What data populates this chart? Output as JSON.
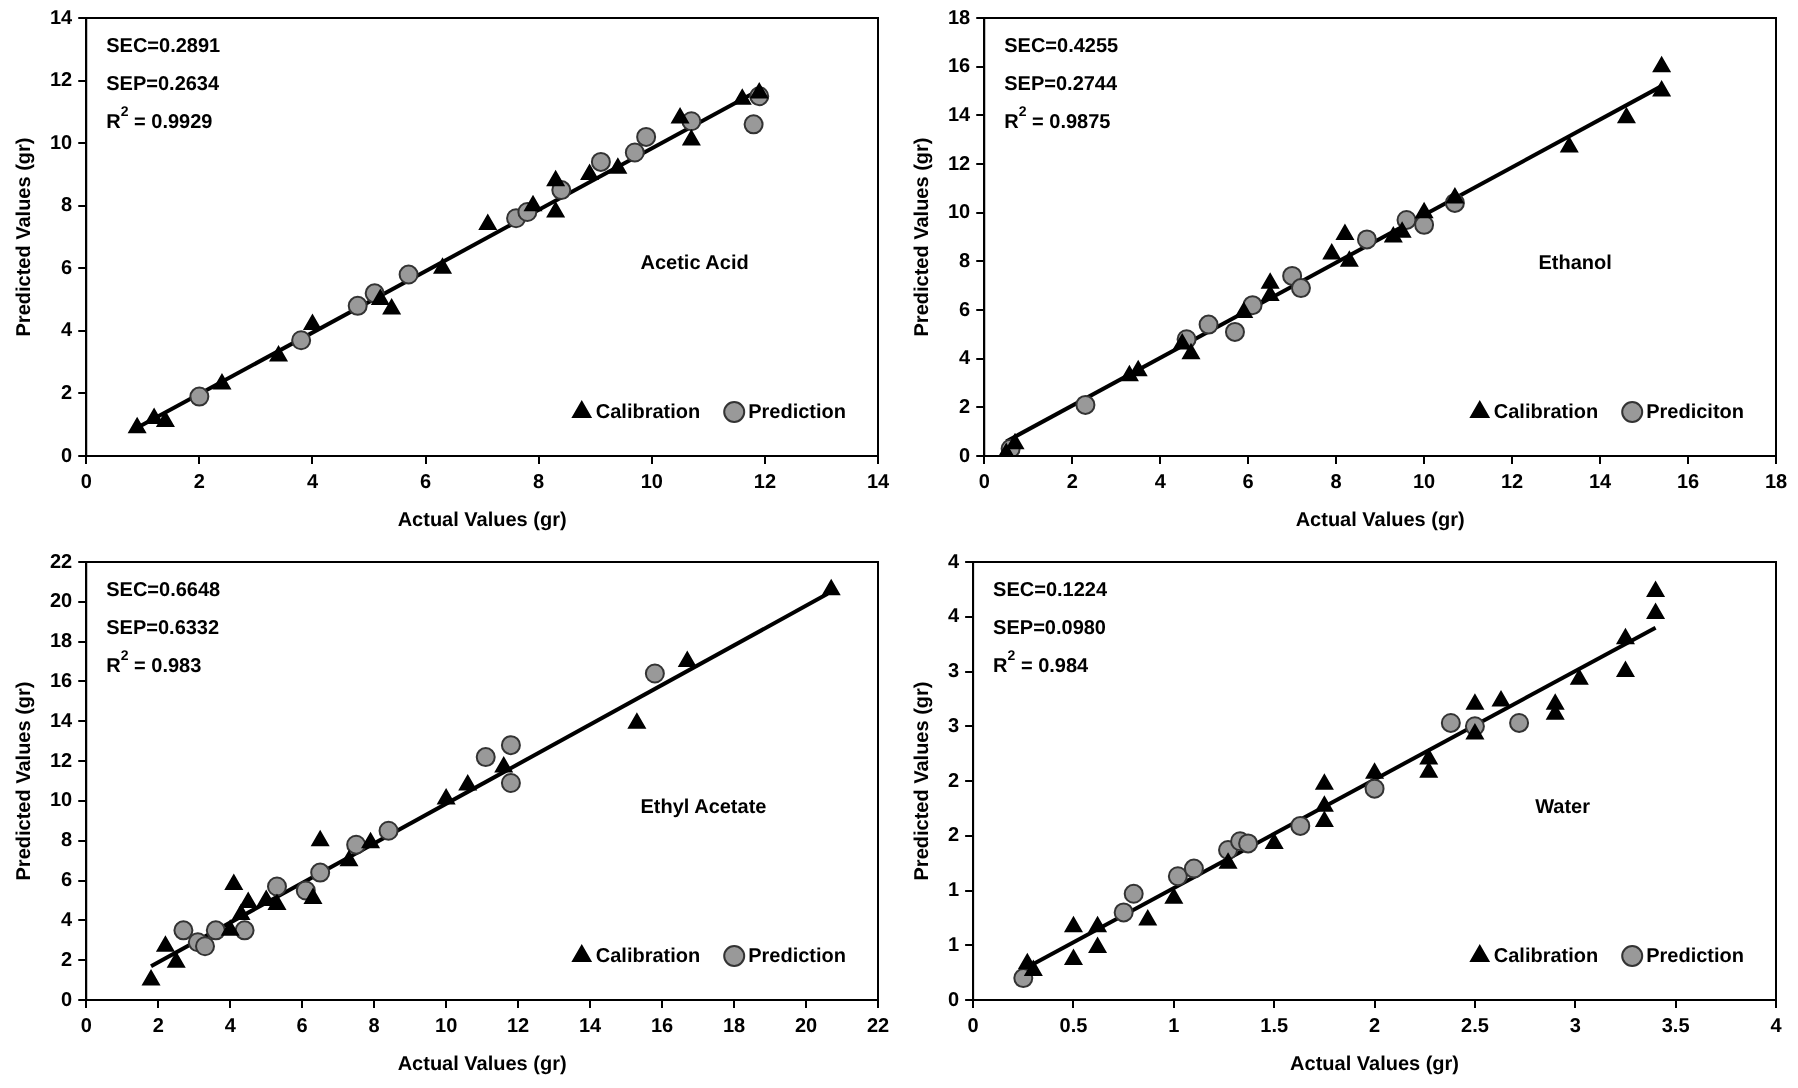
{
  "chart_data": [
    {
      "type": "scatter",
      "xlabel": "Actual Values (gr)",
      "ylabel": "Predicted Values (gr)",
      "xlim": [
        0,
        14
      ],
      "xticks": [
        0,
        2,
        4,
        6,
        8,
        10,
        12,
        14
      ],
      "ylim": [
        0,
        14
      ],
      "yticks": [
        0,
        2,
        4,
        6,
        8,
        10,
        12,
        14
      ],
      "grid": false,
      "legend": "bottom right",
      "annotations": [
        "SEC=0.2891",
        "SEP=0.2634",
        "R$^{2}$ = 0.9929",
        "Acetic Acid"
      ],
      "series": [
        {
          "name": "Calibration",
          "type": "scatter",
          "marker": "triangle",
          "color": "#000000",
          "x": [
            0.9,
            1.2,
            1.4,
            2.4,
            3.4,
            4.0,
            5.2,
            5.4,
            6.3,
            7.1,
            7.9,
            8.3,
            8.3,
            8.9,
            9.4,
            10.5,
            10.7,
            11.6,
            11.9
          ],
          "values": [
            0.9,
            1.2,
            1.1,
            2.3,
            3.2,
            4.2,
            5.0,
            4.7,
            6.0,
            7.4,
            8.0,
            8.8,
            7.8,
            9.0,
            9.2,
            10.8,
            10.1,
            11.4,
            11.6
          ]
        },
        {
          "name": "Prediction",
          "type": "scatter",
          "marker": "circle",
          "color": "#999999",
          "x": [
            2.0,
            3.8,
            4.8,
            5.1,
            5.7,
            7.6,
            7.8,
            8.4,
            9.1,
            9.7,
            9.9,
            10.7,
            11.8,
            11.9
          ],
          "values": [
            1.9,
            3.7,
            4.8,
            5.2,
            5.8,
            7.6,
            7.8,
            8.5,
            9.4,
            9.7,
            10.2,
            10.7,
            10.6,
            11.5
          ]
        },
        {
          "type": "line",
          "marker": "none",
          "color": "#000000",
          "x": [
            0.9,
            11.9
          ],
          "values": [
            0.9,
            11.7
          ]
        }
      ]
    },
    {
      "type": "scatter",
      "xlabel": "Actual Values (gr)",
      "ylabel": "Predicted Values (gr)",
      "xlim": [
        0,
        18
      ],
      "xticks": [
        0,
        2,
        4,
        6,
        8,
        10,
        12,
        14,
        16,
        18
      ],
      "ylim": [
        0,
        18
      ],
      "yticks": [
        0,
        2,
        4,
        6,
        8,
        10,
        12,
        14,
        16,
        18
      ],
      "grid": false,
      "legend": "bottom right",
      "annotations": [
        "SEC=0.4255",
        "SEP=0.2744",
        "R$^{2}$ = 0.9875",
        "Ethanol"
      ],
      "series": [
        {
          "name": "Calibration",
          "type": "scatter",
          "marker": "triangle",
          "color": "#000000",
          "x": [
            0.5,
            0.7,
            3.3,
            3.5,
            4.5,
            4.7,
            5.9,
            6.5,
            6.5,
            7.9,
            8.2,
            8.3,
            9.3,
            9.5,
            10.0,
            10.7,
            13.3,
            14.6,
            15.4,
            15.4
          ],
          "values": [
            0.1,
            0.5,
            3.3,
            3.5,
            4.6,
            4.2,
            5.9,
            7.1,
            6.6,
            8.3,
            9.1,
            8.0,
            9.0,
            9.2,
            10.0,
            10.6,
            12.7,
            13.9,
            16.0,
            15.0
          ]
        },
        {
          "name": "Prediciton",
          "type": "scatter",
          "marker": "circle",
          "color": "#999999",
          "x": [
            0.6,
            2.3,
            4.6,
            5.1,
            5.7,
            6.1,
            7.0,
            7.2,
            8.7,
            9.6,
            10.0,
            10.7
          ],
          "values": [
            0.3,
            2.1,
            4.8,
            5.4,
            5.1,
            6.2,
            7.4,
            6.9,
            8.9,
            9.7,
            9.5,
            10.4
          ]
        },
        {
          "type": "line",
          "marker": "none",
          "color": "#000000",
          "x": [
            0.5,
            15.4
          ],
          "values": [
            0.6,
            15.2
          ]
        }
      ]
    },
    {
      "type": "scatter",
      "xlabel": "Actual Values (gr)",
      "ylabel": "Predicted Values (gr)",
      "xlim": [
        0,
        22
      ],
      "xticks": [
        0,
        2,
        4,
        6,
        8,
        10,
        12,
        14,
        16,
        18,
        20,
        22
      ],
      "ylim": [
        0,
        22
      ],
      "yticks": [
        0,
        2,
        4,
        6,
        8,
        10,
        12,
        14,
        16,
        18,
        20,
        22
      ],
      "grid": false,
      "legend": "bottom right",
      "annotations": [
        "SEC=0.6648",
        "SEP=0.6332",
        "R$^{2}$ = 0.983",
        "Ethyl Acetate"
      ],
      "series": [
        {
          "name": "Calibration",
          "type": "scatter",
          "marker": "triangle",
          "color": "#000000",
          "x": [
            1.8,
            2.2,
            2.5,
            4.0,
            4.1,
            4.3,
            4.5,
            5.0,
            5.3,
            6.3,
            6.5,
            7.3,
            7.9,
            10.0,
            10.6,
            11.6,
            15.3,
            16.7,
            20.7
          ],
          "values": [
            1.0,
            2.7,
            1.9,
            3.5,
            5.8,
            4.3,
            4.9,
            5.0,
            4.8,
            5.1,
            8.0,
            7.0,
            7.9,
            10.1,
            10.8,
            11.7,
            13.9,
            17.0,
            20.6
          ]
        },
        {
          "name": "Prediction",
          "type": "scatter",
          "marker": "circle",
          "color": "#999999",
          "x": [
            2.7,
            3.1,
            3.3,
            3.6,
            4.4,
            5.3,
            6.1,
            6.5,
            7.5,
            8.4,
            11.1,
            11.8,
            11.8,
            15.8
          ],
          "values": [
            3.5,
            2.9,
            2.7,
            3.5,
            3.5,
            5.7,
            5.5,
            6.4,
            7.8,
            8.5,
            12.2,
            12.8,
            10.9,
            16.4
          ]
        },
        {
          "type": "line",
          "marker": "none",
          "color": "#000000",
          "x": [
            1.8,
            20.6
          ],
          "values": [
            1.7,
            20.4
          ]
        }
      ]
    },
    {
      "type": "scatter",
      "xlabel": "Actual Values (gr)",
      "ylabel": "Predicted Values (gr)",
      "xlim": [
        0,
        4
      ],
      "xticks": [
        0,
        0.5,
        1,
        1.5,
        2,
        2.5,
        3,
        3.5,
        4
      ],
      "ylim": [
        0,
        4
      ],
      "yticks": [
        0,
        {
          "value": 0.5,
          "label": "1"
        },
        1,
        {
          "value": 1.5,
          "label": "2"
        },
        2,
        {
          "value": 2.5,
          "label": "3"
        },
        3,
        {
          "value": 3.5,
          "label": "4"
        },
        4
      ],
      "grid": false,
      "legend": "bottom right",
      "annotations": [
        "SEC=0.1224",
        "SEP=0.0980",
        "R$^{2}$ = 0.984",
        "Water"
      ],
      "series": [
        {
          "name": "Calibration",
          "type": "scatter",
          "marker": "triangle",
          "color": "#000000",
          "x": [
            0.27,
            0.3,
            0.5,
            0.5,
            0.62,
            0.62,
            0.87,
            1.0,
            1.27,
            1.5,
            1.75,
            1.75,
            1.75,
            2.0,
            2.27,
            2.27,
            2.5,
            2.5,
            2.63,
            2.9,
            2.9,
            3.02,
            3.25,
            3.25,
            3.4,
            3.4
          ],
          "values": [
            0.33,
            0.27,
            0.67,
            0.37,
            0.67,
            0.48,
            0.73,
            0.93,
            1.25,
            1.43,
            1.97,
            1.77,
            1.63,
            2.07,
            2.2,
            2.08,
            2.7,
            2.43,
            2.73,
            2.7,
            2.61,
            2.93,
            3.3,
            3.0,
            3.73,
            3.53
          ]
        },
        {
          "name": "Prediction",
          "type": "scatter",
          "marker": "circle",
          "color": "#999999",
          "x": [
            0.25,
            0.75,
            0.8,
            1.02,
            1.1,
            1.27,
            1.33,
            1.37,
            1.63,
            2.0,
            2.38,
            2.5,
            2.72
          ],
          "values": [
            0.2,
            0.8,
            0.97,
            1.13,
            1.2,
            1.37,
            1.45,
            1.43,
            1.59,
            1.93,
            2.53,
            2.5,
            2.53
          ]
        },
        {
          "type": "line",
          "marker": "none",
          "color": "#000000",
          "x": [
            0.27,
            3.4
          ],
          "values": [
            0.3,
            3.4
          ]
        }
      ]
    }
  ]
}
